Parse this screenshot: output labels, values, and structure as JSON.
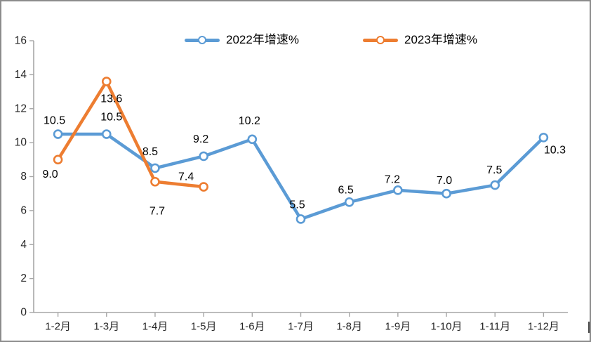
{
  "window": {
    "background_color": "#FFFFFF",
    "border_color": "#8C8C8C"
  },
  "legend": {
    "items": [
      {
        "label": "2022年增速%",
        "color": "#5B9BD5"
      },
      {
        "label": "2023年增速%",
        "color": "#ED7D31"
      }
    ]
  },
  "chart_data": {
    "type": "line",
    "title": "",
    "xlabel": "",
    "ylabel": "",
    "categories": [
      "1-2月",
      "1-3月",
      "1-4月",
      "1-5月",
      "1-6月",
      "1-7月",
      "1-8月",
      "1-9月",
      "1-10月",
      "1-11月",
      "1-12月"
    ],
    "series": [
      {
        "name": "2022年增速%",
        "color": "#5B9BD5",
        "values": [
          10.5,
          10.5,
          8.5,
          9.2,
          10.2,
          5.5,
          6.5,
          7.2,
          7.0,
          7.5,
          10.3
        ],
        "data_labels": [
          "10.5",
          "10.5",
          "8.5",
          "9.2",
          "10.2",
          "5.5",
          "6.5",
          "7.2",
          "7.0",
          "7.5",
          "10.3"
        ]
      },
      {
        "name": "2023年增速%",
        "color": "#ED7D31",
        "values": [
          9.0,
          13.6,
          7.7,
          7.4,
          null,
          null,
          null,
          null,
          null,
          null,
          null
        ],
        "data_labels": [
          "9.0",
          "13.6",
          "7.7",
          "7.4",
          null,
          null,
          null,
          null,
          null,
          null,
          null
        ]
      }
    ],
    "ylim": [
      0,
      16
    ],
    "y_tick_step": 2,
    "y_tick_labels": [
      "0",
      "2",
      "4",
      "6",
      "8",
      "10",
      "12",
      "14",
      "16"
    ],
    "grid": false,
    "legend_position": "top",
    "marker": "circle-open",
    "show_data_labels": true,
    "axis_color": "#A6A6A6",
    "tick_label_color": "#262626",
    "data_label_color": "#000000"
  }
}
